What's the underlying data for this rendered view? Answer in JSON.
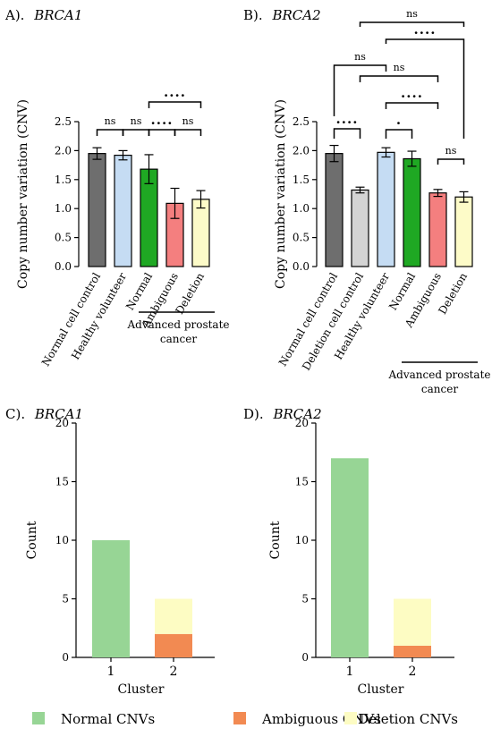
{
  "figure": {
    "legend": {
      "items": [
        {
          "label": "Normal CNVs",
          "color": "#97d595"
        },
        {
          "label": "Ambiguous CNVs",
          "color": "#f28a52"
        },
        {
          "label": "Deletion CNVs",
          "color": "#fdfcc3"
        }
      ]
    }
  },
  "chart_data": [
    {
      "panel": "A).",
      "gene": "BRCA1",
      "type": "bar",
      "ylabel": "Copy number variation (CNV)",
      "ylim": [
        0,
        2.5
      ],
      "yticks": [
        "0.0",
        "0.5",
        "1.0",
        "1.5",
        "2.0",
        "2.5"
      ],
      "categories": [
        "Normal cell control",
        "Healthy volunteer",
        "Normal",
        "Ambiguous",
        "Deletion"
      ],
      "values": [
        1.95,
        1.92,
        1.68,
        1.09,
        1.16
      ],
      "errors": [
        0.1,
        0.08,
        0.25,
        0.26,
        0.15
      ],
      "colors": [
        "#6e6e6e",
        "#c5dcf3",
        "#1fa823",
        "#f47f7f",
        "#fdfbc8"
      ],
      "group_label": "Advanced prostate cancer",
      "group_label_lines": [
        "Advanced prostate",
        "cancer"
      ],
      "comparisons": [
        {
          "from": 0,
          "to": 1,
          "label": "ns"
        },
        {
          "from": 1,
          "to": 2,
          "label": "ns"
        },
        {
          "from": 2,
          "to": 3,
          "label": "····"
        },
        {
          "from": 3,
          "to": 4,
          "label": "ns"
        },
        {
          "from": 2,
          "to": 4,
          "label": "····"
        }
      ]
    },
    {
      "panel": "B).",
      "gene": "BRCA2",
      "type": "bar",
      "ylabel": "Copy number variation (CNV)",
      "ylim": [
        0,
        2.5
      ],
      "yticks": [
        "0.0",
        "0.5",
        "1.0",
        "1.5",
        "2.0",
        "2.5"
      ],
      "categories": [
        "Normal cell control",
        "Deletion cell control",
        "Healthy volunteer",
        "Normal",
        "Ambiguous",
        "Deletion"
      ],
      "values": [
        1.95,
        1.32,
        1.97,
        1.86,
        1.27,
        1.2
      ],
      "errors": [
        0.14,
        0.05,
        0.08,
        0.13,
        0.06,
        0.09
      ],
      "colors": [
        "#6e6e6e",
        "#d4d4d4",
        "#c5dcf3",
        "#1fa823",
        "#f47f7f",
        "#fdfbc8"
      ],
      "group_label": "Advanced prostate cancer",
      "group_label_lines": [
        "Advanced prostate",
        "cancer"
      ],
      "comparisons": [
        {
          "from": 0,
          "to": 1,
          "label": "····"
        },
        {
          "from": 2,
          "to": 3,
          "label": "·"
        },
        {
          "from": 4,
          "to": 5,
          "label": "ns"
        },
        {
          "from": 2,
          "to": 4,
          "label": "····"
        },
        {
          "from": 1,
          "to": 4,
          "label": "ns"
        },
        {
          "from": 0,
          "to": 2,
          "label": "ns"
        },
        {
          "from": 2,
          "to": 5,
          "label": "····"
        },
        {
          "from": 1,
          "to": 5,
          "label": "ns"
        }
      ]
    },
    {
      "panel": "C).",
      "gene": "BRCA1",
      "type": "bar",
      "stacked": true,
      "xlabel": "Cluster",
      "ylabel": "Count",
      "ylim": [
        0,
        20
      ],
      "yticks": [
        "0",
        "5",
        "10",
        "15",
        "20"
      ],
      "categories": [
        "1",
        "2"
      ],
      "series": [
        {
          "name": "Normal CNVs",
          "values": [
            10,
            0
          ],
          "color": "#97d595"
        },
        {
          "name": "Ambiguous CNVs",
          "values": [
            0,
            2
          ],
          "color": "#f28a52"
        },
        {
          "name": "Deletion CNVs",
          "values": [
            0,
            3
          ],
          "color": "#fdfcc3"
        }
      ]
    },
    {
      "panel": "D).",
      "gene": "BRCA2",
      "type": "bar",
      "stacked": true,
      "xlabel": "Cluster",
      "ylabel": "Count",
      "ylim": [
        0,
        20
      ],
      "yticks": [
        "0",
        "5",
        "10",
        "15",
        "20"
      ],
      "categories": [
        "1",
        "2"
      ],
      "series": [
        {
          "name": "Normal CNVs",
          "values": [
            17,
            0
          ],
          "color": "#97d595"
        },
        {
          "name": "Ambiguous CNVs",
          "values": [
            0,
            1
          ],
          "color": "#f28a52"
        },
        {
          "name": "Deletion CNVs",
          "values": [
            0,
            4
          ],
          "color": "#fdfcc3"
        }
      ]
    }
  ]
}
